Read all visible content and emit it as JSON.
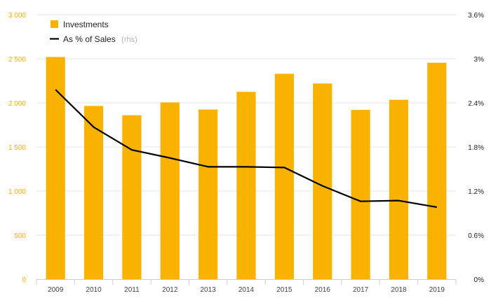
{
  "chart_data": {
    "type": "bar",
    "categories": [
      "2009",
      "2010",
      "2011",
      "2012",
      "2013",
      "2014",
      "2015",
      "2016",
      "2017",
      "2018",
      "2019"
    ],
    "series": [
      {
        "name": "Investments",
        "type": "bar",
        "axis": "left",
        "color": "#f9b200",
        "values": [
          2520,
          1965,
          1860,
          2005,
          1925,
          2125,
          2330,
          2220,
          1920,
          2035,
          2455
        ]
      },
      {
        "name": "As % of Sales",
        "name_suffix": "(rhs)",
        "type": "line",
        "axis": "right",
        "color": "#000000",
        "values": [
          2.58,
          2.07,
          1.76,
          1.65,
          1.53,
          1.53,
          1.52,
          1.27,
          1.06,
          1.07,
          0.98
        ]
      }
    ],
    "left_axis": {
      "ylim": [
        0,
        3000
      ],
      "ticks": [
        0,
        500,
        1000,
        1500,
        2000,
        2500,
        3000
      ],
      "tick_labels": [
        "0",
        "500",
        "1 000",
        "1 500",
        "2 000",
        "2 500",
        "3 000"
      ],
      "color": "#f6ad00"
    },
    "right_axis": {
      "ylim": [
        0,
        3.6
      ],
      "ticks": [
        0,
        0.6,
        1.2,
        1.8,
        2.4,
        3.0,
        3.6
      ],
      "tick_labels": [
        "0%",
        "0.6%",
        "1.2%",
        "1.8%",
        "2.4%",
        "3%",
        "3.6%"
      ]
    },
    "grid": true,
    "legend_position": "top-left"
  }
}
